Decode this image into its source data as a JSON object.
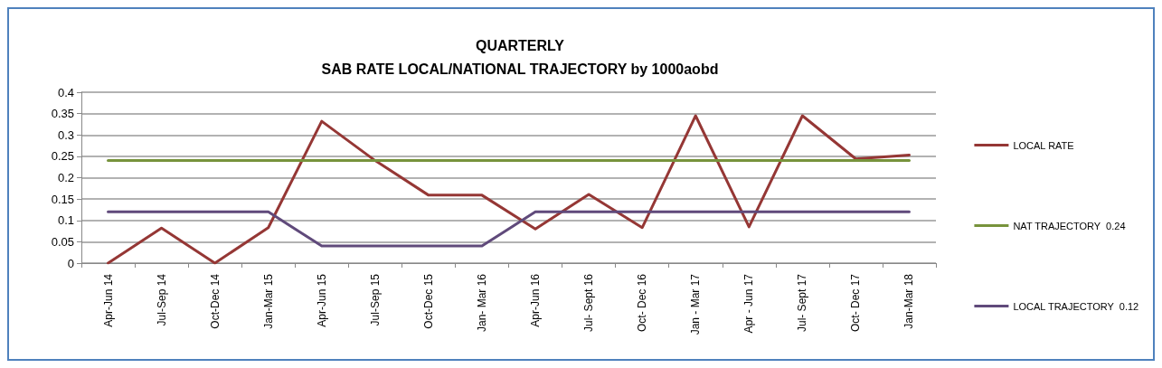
{
  "chart_data": {
    "type": "line",
    "title": "QUARTERLY\nSAB RATE LOCAL/NATIONAL TRAJECTORY by 1000aobd",
    "categories": [
      "Apr-Jun 14",
      "Jul-Sep 14",
      "Oct-Dec 14",
      "Jan-Mar 15",
      "Apr-Jun 15",
      "Jul-Sep 15",
      "Oct-Dec 15",
      "Jan- Mar 16",
      "Apr-Jun 16",
      "Jul- Sept 16",
      "Oct- Dec 16",
      "Jan - Mar 17",
      "Apr - Jun 17",
      "Jul- Sept 17",
      "Oct- Dec 17",
      "Jan-Mar 18"
    ],
    "series": [
      {
        "name": "LOCAL RATE",
        "color": "#953735",
        "values": [
          0,
          0.082,
          0,
          0.083,
          0.332,
          0.24,
          0.159,
          0.159,
          0.08,
          0.161,
          0.083,
          0.345,
          0.085,
          0.345,
          0.244,
          0.253
        ]
      },
      {
        "name": "NAT TRAJECTORY  0.24",
        "color": "#77933c",
        "values": [
          0.24,
          0.24,
          0.24,
          0.24,
          0.24,
          0.24,
          0.24,
          0.24,
          0.24,
          0.24,
          0.24,
          0.24,
          0.24,
          0.24,
          0.24,
          0.24
        ]
      },
      {
        "name": "LOCAL TRAJECTORY  0.12",
        "color": "#604a7b",
        "values": [
          0.12,
          0.12,
          0.12,
          0.12,
          0.04,
          0.04,
          0.04,
          0.04,
          0.12,
          0.12,
          0.12,
          0.12,
          0.12,
          0.12,
          0.12,
          0.12
        ]
      }
    ],
    "ylim": [
      0,
      0.4
    ],
    "yticks": [
      0,
      0.05,
      0.1,
      0.15,
      0.2,
      0.25,
      0.3,
      0.35,
      0.4
    ],
    "grid": "y",
    "legend": "right",
    "marker": "none",
    "line_style": "solid"
  }
}
